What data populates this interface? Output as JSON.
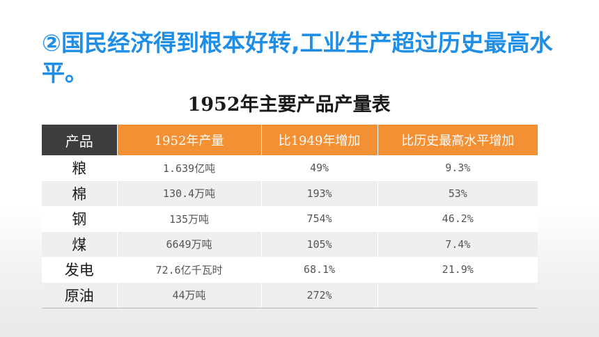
{
  "heading": "②国民经济得到根本好转,工业生产超过历史最高水平。",
  "table": {
    "title": "1952年主要产品产量表",
    "headers": [
      "产品",
      "1952年产量",
      "比1949年增加",
      "比历史最高水平增加"
    ],
    "rows": [
      [
        "粮",
        "1.639亿吨",
        "49%",
        "9.3%"
      ],
      [
        "棉",
        "130.4万吨",
        "193%",
        "53%"
      ],
      [
        "钢",
        "135万吨",
        "754%",
        "46.2%"
      ],
      [
        "煤",
        "6649万吨",
        "105%",
        "7.4%"
      ],
      [
        "发电",
        "72.6亿千瓦时",
        "68.1%",
        "21.9%"
      ],
      [
        "原油",
        "44万吨",
        "272%",
        ""
      ]
    ]
  },
  "colors": {
    "heading": "#1e8ee6",
    "header_dark": "#3d3d3d",
    "header_orange": "#f39034",
    "row_alt": "#efefef"
  }
}
